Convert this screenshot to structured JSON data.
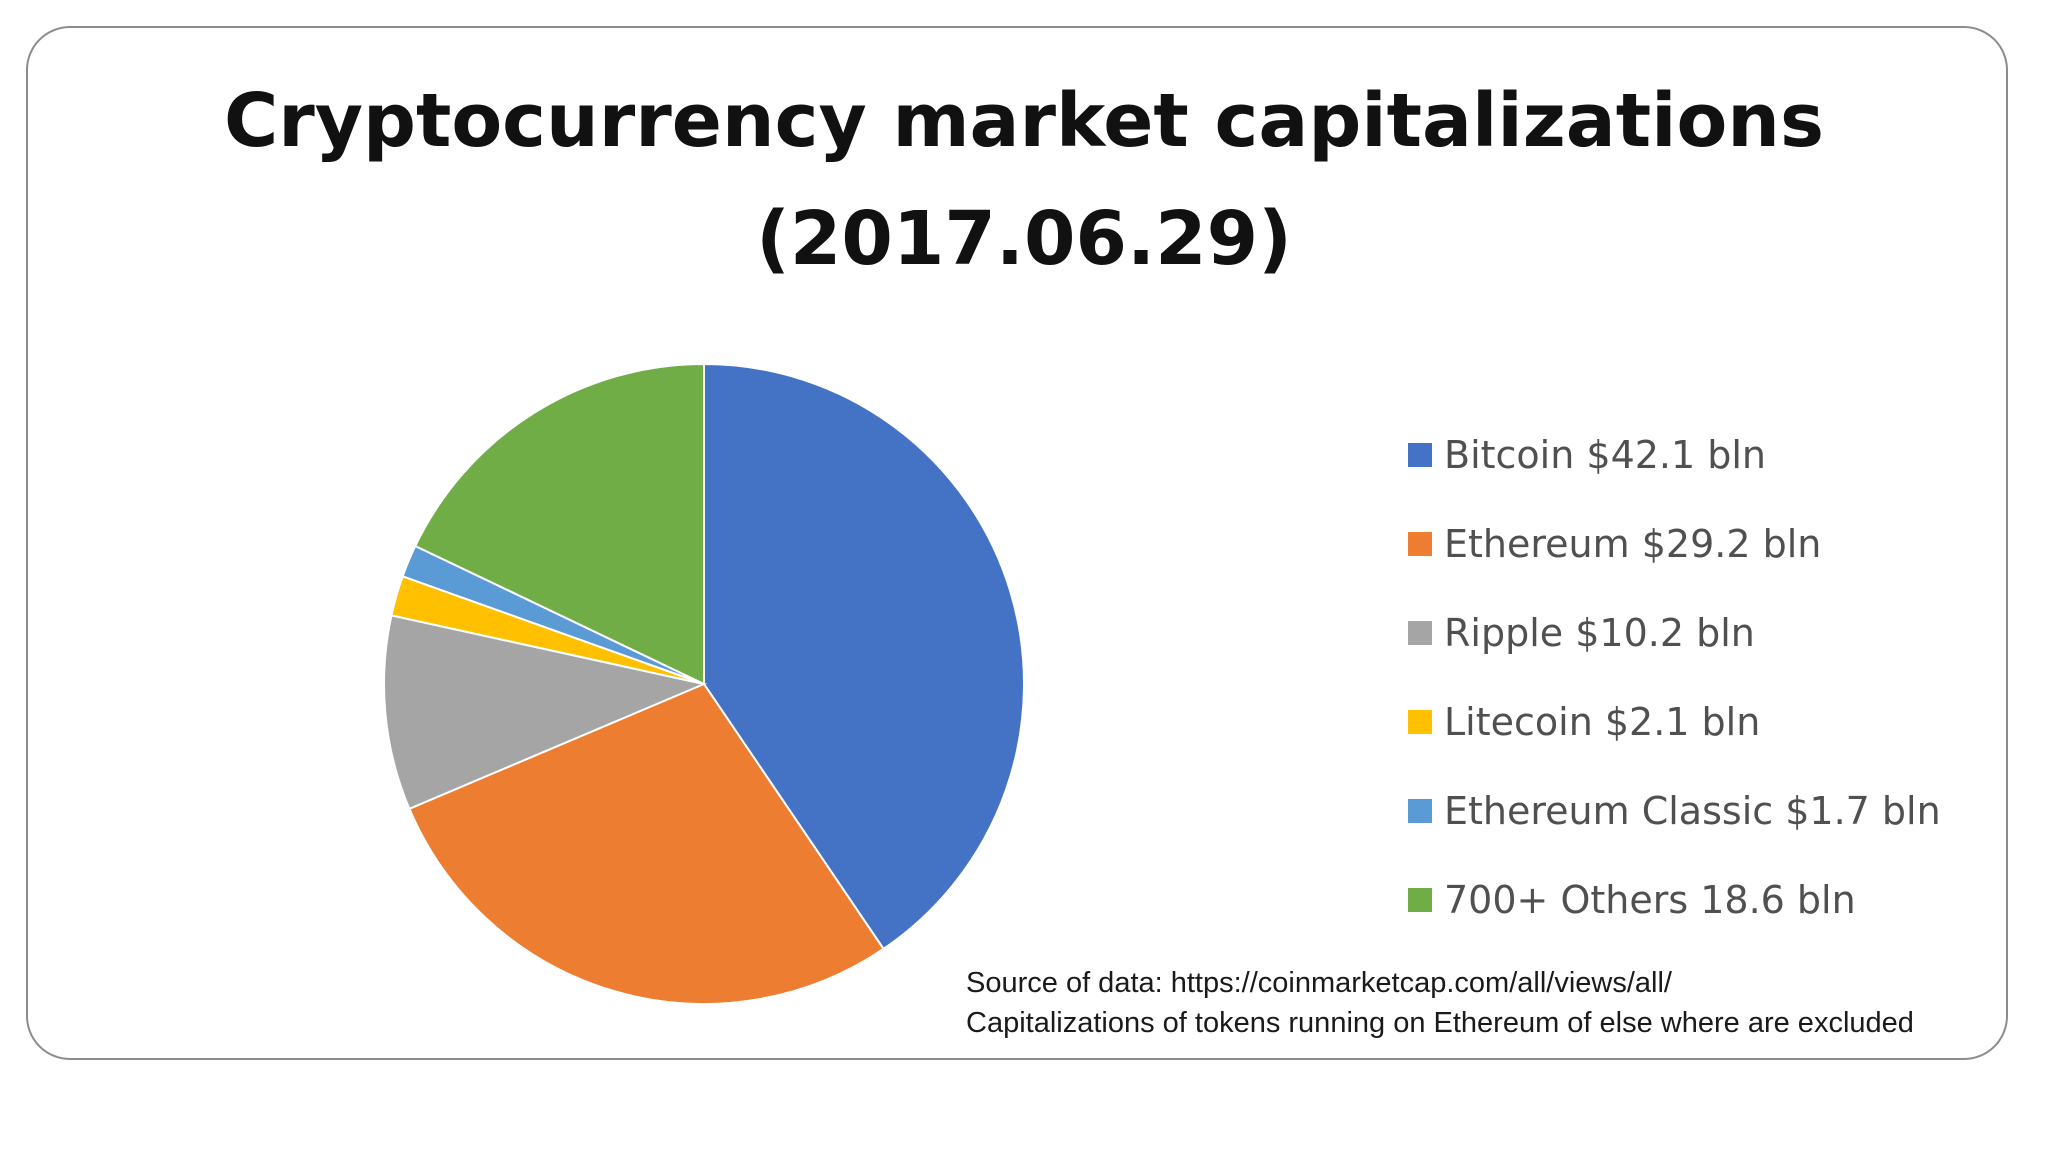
{
  "chart_data": {
    "type": "pie",
    "title": "Cryptocurrency market capitalizations",
    "subtitle": "(2017.06.29)",
    "categories": [
      "Bitcoin",
      "Ethereum",
      "Ripple",
      "Litecoin",
      "Ethereum Classic",
      "700+ Others"
    ],
    "values": [
      42.1,
      29.2,
      10.2,
      2.1,
      1.7,
      18.6
    ],
    "unit": "bln",
    "colors": [
      "#4472C4",
      "#ED7D31",
      "#A5A5A5",
      "#FFC000",
      "#5B9BD5",
      "#70AD47"
    ],
    "legend": [
      "Bitcoin $42.1 bln",
      "Ethereum $29.2 bln",
      "Ripple $10.2 bln",
      "Litecoin $2.1 bln",
      "Ethereum Classic $1.7 bln",
      "700+ Others 18.6 bln"
    ],
    "legend_position": "right",
    "start_angle": "12 o'clock",
    "direction": "clockwise"
  },
  "notes": {
    "source_line": "Source of data: https://coinmarketcap.com/all/views/all/",
    "exclusion_line": "Capitalizations of tokens running on Ethereum of else where are excluded"
  }
}
